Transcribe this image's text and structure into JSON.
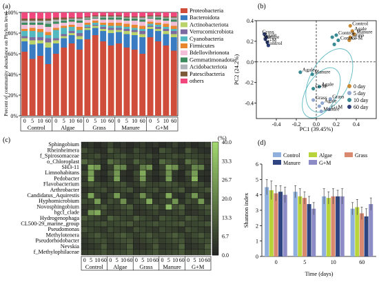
{
  "chart_data": [
    {
      "panel": "(a)",
      "type": "bar",
      "stacked": true,
      "ylabel": "Percent of community abundance on Phylum level",
      "ylim": [
        0,
        100
      ],
      "yticks": [
        "0%",
        "20%",
        "40%",
        "60%",
        "80%",
        "100%"
      ],
      "days": [
        "0",
        "5",
        "10",
        "60"
      ],
      "groups": [
        "Control",
        "Algae",
        "Grass",
        "Manure",
        "G+M"
      ],
      "legend": [
        "Proteobacteria",
        "Bacteroidota",
        "Actinobacteriota",
        "Verrucomicrobiota",
        "Cyanobacteria",
        "Firmicutes",
        "Bdellovibrionota",
        "Gemmatimonadota",
        "Acidobacteriota",
        "Patescibacteria",
        "others"
      ],
      "colors": [
        "#d04d3c",
        "#3a7cc2",
        "#b9d36a",
        "#7d6aa0",
        "#53b8c0",
        "#e8872f",
        "#f2bdd6",
        "#3c8b5e",
        "#b0b4b8",
        "#7d5a3a",
        "#f0487d"
      ],
      "columns": [
        [
          62,
          10,
          3,
          2,
          5,
          2,
          4,
          2,
          2,
          2,
          6
        ],
        [
          55,
          14,
          4,
          3,
          6,
          3,
          3,
          2,
          2,
          2,
          6
        ],
        [
          58,
          12,
          3,
          3,
          5,
          3,
          4,
          2,
          2,
          2,
          6
        ],
        [
          50,
          16,
          5,
          4,
          3,
          3,
          5,
          3,
          3,
          2,
          6
        ],
        [
          60,
          10,
          3,
          2,
          8,
          2,
          4,
          2,
          2,
          2,
          5
        ],
        [
          66,
          9,
          2,
          2,
          6,
          2,
          3,
          2,
          1,
          2,
          5
        ],
        [
          70,
          8,
          2,
          2,
          4,
          2,
          3,
          2,
          1,
          1,
          5
        ],
        [
          64,
          10,
          3,
          3,
          3,
          3,
          4,
          2,
          2,
          1,
          5
        ],
        [
          74,
          9,
          2,
          1,
          2,
          2,
          3,
          1,
          1,
          1,
          4
        ],
        [
          78,
          7,
          2,
          1,
          2,
          2,
          2,
          1,
          1,
          1,
          3
        ],
        [
          72,
          10,
          2,
          2,
          2,
          2,
          3,
          2,
          1,
          1,
          3
        ],
        [
          68,
          12,
          3,
          2,
          2,
          3,
          3,
          2,
          1,
          1,
          3
        ],
        [
          70,
          11,
          2,
          2,
          2,
          3,
          3,
          2,
          1,
          1,
          3
        ],
        [
          66,
          13,
          3,
          2,
          2,
          3,
          3,
          2,
          1,
          1,
          4
        ],
        [
          64,
          14,
          3,
          2,
          2,
          3,
          4,
          2,
          1,
          1,
          4
        ],
        [
          60,
          16,
          3,
          3,
          2,
          3,
          4,
          2,
          2,
          1,
          4
        ],
        [
          76,
          8,
          2,
          1,
          2,
          2,
          3,
          1,
          1,
          1,
          3
        ],
        [
          72,
          10,
          2,
          2,
          2,
          2,
          3,
          2,
          1,
          1,
          3
        ],
        [
          68,
          11,
          3,
          2,
          2,
          3,
          3,
          2,
          1,
          1,
          4
        ],
        [
          63,
          13,
          3,
          3,
          2,
          3,
          4,
          2,
          2,
          1,
          4
        ]
      ]
    },
    {
      "panel": "(b)",
      "type": "scatter",
      "xlabel": "PC1 (39.45%)",
      "ylabel": "PC2 (24.2%)",
      "xlim": [
        -0.6,
        0.6
      ],
      "ylim": [
        -0.55,
        0.4
      ],
      "xticks": [
        -0.4,
        -0.2,
        0.0,
        0.2,
        0.4
      ],
      "yticks": [
        0.4,
        0.2,
        0.0,
        -0.2,
        -0.4
      ],
      "legend": [
        {
          "label": "0 day",
          "color": "#c98a35"
        },
        {
          "label": "5 day",
          "color": "#8fa6cf"
        },
        {
          "label": "10 day",
          "color": "#3a8b93"
        },
        {
          "label": "60 day",
          "color": "#2f3f78"
        }
      ],
      "points": [
        {
          "x": 0.36,
          "y": 0.3,
          "day": "0 day",
          "label": "Agale"
        },
        {
          "x": 0.38,
          "y": 0.27,
          "day": "0 day",
          "label": "Manure"
        },
        {
          "x": 0.34,
          "y": 0.24,
          "day": "0 day",
          "label": "Grass"
        },
        {
          "x": 0.33,
          "y": 0.21,
          "day": "0 day",
          "label": "G+M"
        },
        {
          "x": 0.34,
          "y": 0.35,
          "day": "0 day",
          "label": "Control"
        },
        {
          "x": 0.14,
          "y": -0.36,
          "day": "5 day",
          "label": "Grass"
        },
        {
          "x": 0.06,
          "y": -0.4,
          "day": "5 day",
          "label": "Agale"
        },
        {
          "x": 0.13,
          "y": -0.46,
          "day": "5 day",
          "label": "G+M"
        },
        {
          "x": 0.03,
          "y": -0.43,
          "day": "5 day",
          "label": ""
        },
        {
          "x": -0.03,
          "y": -0.37,
          "day": "5 day",
          "label": "Grass"
        },
        {
          "x": 0.05,
          "y": -0.48,
          "day": "5 day",
          "label": "Manure"
        },
        {
          "x": 0.22,
          "y": 0.21,
          "day": "10 day",
          "label": "Control"
        },
        {
          "x": 0.18,
          "y": 0.17,
          "day": "10 day",
          "label": ""
        },
        {
          "x": 0.16,
          "y": 0.24,
          "day": "10 day",
          "label": ""
        },
        {
          "x": 0.2,
          "y": 0.26,
          "day": "10 day",
          "label": "Control"
        },
        {
          "x": 0.03,
          "y": -0.24,
          "day": "10 day",
          "label": "Agale"
        },
        {
          "x": -0.03,
          "y": -0.26,
          "day": "10 day",
          "label": "G+M"
        },
        {
          "x": -0.04,
          "y": -0.12,
          "day": "10 day",
          "label": "Manure"
        },
        {
          "x": -0.16,
          "y": -0.1,
          "day": "10 day",
          "label": "Agale"
        },
        {
          "x": -0.52,
          "y": 0.27,
          "day": "60 day",
          "label": "Grass"
        },
        {
          "x": -0.5,
          "y": 0.24,
          "day": "60 day",
          "label": "Agale"
        },
        {
          "x": -0.51,
          "y": 0.22,
          "day": "60 day",
          "label": "Manure"
        },
        {
          "x": -0.49,
          "y": 0.19,
          "day": "60 day",
          "label": "G+M"
        },
        {
          "x": -0.48,
          "y": 0.16,
          "day": "60 day",
          "label": "Control"
        }
      ]
    },
    {
      "panel": "(c)",
      "type": "heatmap",
      "colorbar_label": "(%)",
      "colorbar_ticks": [
        "40.0",
        "33.3",
        "26.7",
        "20.0",
        "13.3",
        "6.7",
        "0.0"
      ],
      "vmin": 0,
      "vmax": 40,
      "days": [
        "0",
        "5",
        "10",
        "60"
      ],
      "groups": [
        "Control",
        "Algae",
        "Grass",
        "Manure",
        "G+M"
      ],
      "rows": [
        "Sphingobium",
        "Rheinheimera",
        "f_Spirosomaceae",
        "o_Chloroplast",
        "SH3-11",
        "Limnohabitans",
        "Pedobacter",
        "Flavobacterium",
        "Arthrobacter",
        "Candidatus_Aquirestis",
        "Hyphomicrobium",
        "Novosphingobium",
        "hgcI_clade",
        "Hydrogenophaga",
        "CL500-29_marine_group",
        "Pseudomonas",
        "Methylotenera",
        "Pseudorhodobacter",
        "Nevskia",
        "f_Methylophilaceae"
      ],
      "values": [
        [
          3,
          5,
          2,
          4,
          8,
          3,
          5,
          2,
          4,
          6,
          3,
          5,
          2,
          4,
          7,
          3,
          5,
          2,
          4,
          6
        ],
        [
          10,
          6,
          4,
          3,
          12,
          7,
          5,
          3,
          9,
          6,
          4,
          2,
          11,
          8,
          5,
          3,
          12,
          6,
          4,
          3
        ],
        [
          6,
          8,
          10,
          5,
          7,
          9,
          11,
          6,
          8,
          7,
          9,
          5,
          6,
          8,
          10,
          7,
          9,
          8,
          7,
          6
        ],
        [
          15,
          10,
          6,
          4,
          17,
          12,
          8,
          5,
          14,
          9,
          6,
          3,
          16,
          11,
          7,
          4,
          18,
          12,
          7,
          5
        ],
        [
          4,
          30,
          26,
          3,
          6,
          24,
          22,
          4,
          5,
          20,
          25,
          3,
          7,
          28,
          24,
          5,
          6,
          22,
          20,
          4
        ],
        [
          8,
          28,
          5,
          3,
          10,
          26,
          4,
          2,
          9,
          30,
          6,
          3,
          7,
          25,
          5,
          2,
          11,
          27,
          4,
          3
        ],
        [
          5,
          30,
          4,
          2,
          6,
          28,
          3,
          2,
          7,
          26,
          5,
          2,
          4,
          27,
          4,
          2,
          6,
          32,
          3,
          2
        ],
        [
          7,
          12,
          9,
          6,
          8,
          10,
          11,
          5,
          6,
          13,
          8,
          7,
          9,
          11,
          10,
          6,
          7,
          12,
          9,
          5
        ],
        [
          4,
          6,
          8,
          10,
          5,
          7,
          9,
          11,
          4,
          6,
          8,
          10,
          5,
          7,
          9,
          12,
          4,
          6,
          8,
          11
        ],
        [
          6,
          29,
          7,
          4,
          8,
          27,
          6,
          3,
          7,
          24,
          8,
          4,
          6,
          30,
          5,
          3,
          9,
          26,
          7,
          4
        ],
        [
          9,
          8,
          27,
          5,
          10,
          7,
          24,
          4,
          8,
          9,
          30,
          5,
          7,
          8,
          25,
          4,
          10,
          7,
          26,
          5
        ],
        [
          5,
          6,
          9,
          12,
          6,
          7,
          10,
          13,
          5,
          6,
          9,
          12,
          6,
          33,
          10,
          14,
          5,
          6,
          9,
          12
        ],
        [
          4,
          26,
          30,
          8,
          5,
          6,
          7,
          9,
          4,
          5,
          6,
          8,
          5,
          6,
          7,
          10,
          4,
          5,
          6,
          9
        ],
        [
          12,
          9,
          7,
          5,
          14,
          10,
          8,
          6,
          13,
          9,
          7,
          5,
          11,
          9,
          8,
          6,
          12,
          10,
          7,
          5
        ],
        [
          7,
          8,
          9,
          11,
          8,
          9,
          10,
          12,
          7,
          8,
          9,
          11,
          8,
          9,
          10,
          12,
          7,
          8,
          9,
          11
        ],
        [
          10,
          8,
          6,
          5,
          9,
          7,
          6,
          4,
          10,
          8,
          6,
          5,
          9,
          7,
          6,
          4,
          10,
          8,
          6,
          5
        ],
        [
          6,
          9,
          12,
          8,
          7,
          10,
          13,
          9,
          6,
          9,
          12,
          8,
          7,
          10,
          13,
          9,
          6,
          9,
          12,
          8
        ],
        [
          5,
          7,
          9,
          10,
          6,
          8,
          10,
          11,
          5,
          7,
          9,
          10,
          6,
          8,
          10,
          11,
          5,
          7,
          9,
          10
        ],
        [
          4,
          5,
          6,
          12,
          5,
          6,
          7,
          13,
          4,
          5,
          6,
          12,
          5,
          6,
          7,
          14,
          4,
          5,
          6,
          13
        ],
        [
          6,
          7,
          8,
          11,
          7,
          8,
          9,
          12,
          6,
          7,
          8,
          11,
          7,
          8,
          9,
          12,
          6,
          7,
          8,
          11
        ]
      ]
    },
    {
      "panel": "(d)",
      "type": "bar",
      "xlabel": "Time (days)",
      "ylabel": "Shannon index",
      "ylim": [
        0,
        6
      ],
      "yticks": [
        0,
        1,
        2,
        3,
        4,
        5,
        6
      ],
      "categories": [
        "0",
        "5",
        "10",
        "60"
      ],
      "series": [
        {
          "name": "Control",
          "color": "#8fb0dc",
          "values": [
            4.5,
            4.2,
            3.9,
            3.1
          ],
          "errors": [
            0.5,
            0.4,
            0.5,
            0.4
          ]
        },
        {
          "name": "Algae",
          "color": "#b9d33a",
          "values": [
            4.3,
            3.9,
            3.8,
            3.2
          ],
          "errors": [
            0.6,
            0.5,
            0.4,
            0.5
          ]
        },
        {
          "name": "Grass",
          "color": "#d9896f",
          "values": [
            4.1,
            3.8,
            3.9,
            2.8
          ],
          "errors": [
            0.5,
            0.4,
            0.5,
            0.4
          ]
        },
        {
          "name": "Manure",
          "color": "#2f4581",
          "values": [
            4.2,
            3.4,
            3.9,
            2.6
          ],
          "errors": [
            0.4,
            0.5,
            0.4,
            0.5
          ]
        },
        {
          "name": "G+M",
          "color": "#8e8cc6",
          "values": [
            4.0,
            3.1,
            3.9,
            3.4
          ],
          "errors": [
            0.5,
            0.4,
            0.5,
            0.4
          ]
        }
      ]
    }
  ]
}
